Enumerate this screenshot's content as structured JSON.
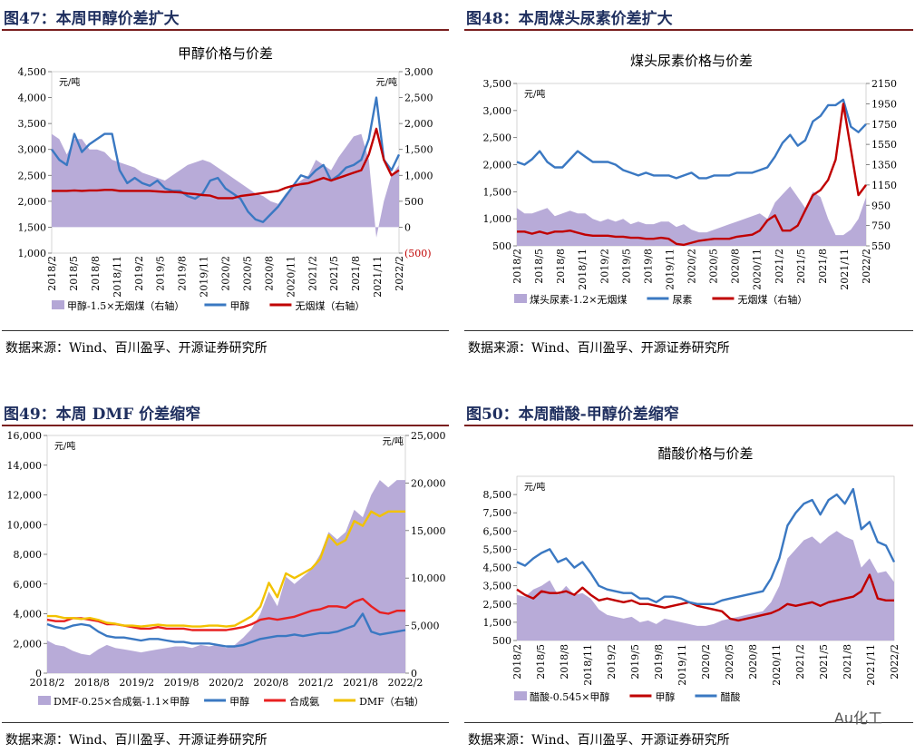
{
  "panels": [
    {
      "title": "图47：本周甲醇价差扩大",
      "source": "数据来源：Wind、百川盈孚、开源证券研究所"
    },
    {
      "title": "图48：本周煤头尿素价差扩大",
      "source": "数据来源：Wind、百川盈孚、开源证券研究所"
    },
    {
      "title": "图49：本周 DMF 价差缩窄",
      "source": "数据来源：Wind、百川盈孚、开源证券研究所"
    },
    {
      "title": "图50：本周醋酸-甲醇价差缩窄",
      "source": "数据来源：Wind、百川盈孚、开源证券研究所"
    }
  ],
  "watermark": "Au化工",
  "chart_data": [
    {
      "type": "line",
      "title": "甲醇价格与价差",
      "unit_left": "元/吨",
      "unit_right": "元/吨",
      "ylim_left": [
        1000,
        4500
      ],
      "yticks_left": [
        "1,000",
        "1,500",
        "2,000",
        "2,500",
        "3,000",
        "3,500",
        "4,000",
        "4,500"
      ],
      "ylim_right": [
        -500,
        3000
      ],
      "yticks_right": [
        "(500)",
        "0",
        "500",
        "1,000",
        "1,500",
        "2,000",
        "2,500",
        "3,000"
      ],
      "x_ticks": [
        "2018/2",
        "2018/5",
        "2018/8",
        "2018/11",
        "2019/2",
        "2019/5",
        "2019/8",
        "2019/11",
        "2020/2",
        "2020/5",
        "2020/8",
        "2020/11",
        "2021/2",
        "2021/5",
        "2021/8",
        "2021/11",
        "2022/2"
      ],
      "series": [
        {
          "name": "甲醇-1.5×无烟煤（右轴）",
          "style": "area",
          "axis": "right",
          "color": "#b4a7d6",
          "values": [
            1800,
            1700,
            1400,
            1700,
            1700,
            1500,
            1500,
            1450,
            1300,
            1250,
            1200,
            1150,
            1050,
            1000,
            950,
            900,
            1000,
            1100,
            1200,
            1250,
            1300,
            1250,
            1150,
            1050,
            950,
            850,
            750,
            650,
            600,
            500,
            450,
            650,
            800,
            900,
            1000,
            1300,
            1200,
            1100,
            1350,
            1550,
            1750,
            1800,
            1300,
            -200,
            500,
            1000,
            1200
          ]
        },
        {
          "name": "甲醇",
          "style": "line",
          "axis": "left",
          "color": "#3a78c2",
          "values": [
            3000,
            2800,
            2700,
            3300,
            2950,
            3100,
            3200,
            3300,
            3300,
            2600,
            2350,
            2450,
            2350,
            2300,
            2400,
            2250,
            2200,
            2200,
            2100,
            2050,
            2150,
            2400,
            2450,
            2250,
            2150,
            2050,
            1800,
            1650,
            1600,
            1750,
            1900,
            2100,
            2300,
            2500,
            2450,
            2600,
            2700,
            2400,
            2500,
            2650,
            2700,
            2800,
            3200,
            4000,
            2800,
            2600,
            2900
          ]
        },
        {
          "name": "无烟煤（右轴）",
          "style": "line",
          "axis": "right",
          "color": "#c00000",
          "values": [
            700,
            700,
            700,
            710,
            700,
            710,
            710,
            720,
            720,
            700,
            700,
            700,
            700,
            700,
            690,
            680,
            680,
            670,
            650,
            640,
            620,
            610,
            560,
            560,
            560,
            600,
            620,
            640,
            660,
            680,
            700,
            760,
            800,
            830,
            850,
            900,
            950,
            900,
            950,
            1000,
            1050,
            1100,
            1400,
            1900,
            1300,
            1000,
            1100
          ]
        }
      ]
    },
    {
      "type": "line",
      "title": "煤头尿素价格与价差",
      "unit_left": "元/吨",
      "ylim_left": [
        500,
        3500
      ],
      "yticks_left": [
        "500",
        "1,000",
        "1,500",
        "2,000",
        "2,500",
        "3,000",
        "3,500"
      ],
      "ylim_right": [
        550,
        2150
      ],
      "yticks_right": [
        "550",
        "750",
        "950",
        "1150",
        "1350",
        "1550",
        "1750",
        "1950",
        "2150"
      ],
      "x_ticks": [
        "2018/2",
        "2018/5",
        "2018/8",
        "2018/11",
        "2019/2",
        "2019/5",
        "2019/8",
        "2019/11",
        "2020/2",
        "2020/5",
        "2020/8",
        "2020/11",
        "2021/2",
        "2021/5",
        "2021/8",
        "2021/11",
        "2022/2"
      ],
      "series": [
        {
          "name": "煤头尿素-1.2×无烟煤",
          "style": "area",
          "axis": "left",
          "color": "#b4a7d6",
          "values": [
            1200,
            1100,
            1100,
            1150,
            1200,
            1050,
            1100,
            1150,
            1100,
            1100,
            1000,
            950,
            1000,
            950,
            1000,
            900,
            950,
            900,
            900,
            950,
            950,
            850,
            900,
            800,
            750,
            750,
            800,
            850,
            900,
            950,
            1000,
            1050,
            1100,
            1000,
            1300,
            1450,
            1600,
            1400,
            1200,
            1500,
            1400,
            1000,
            700,
            700,
            800,
            1000,
            1400
          ]
        },
        {
          "name": "尿素",
          "style": "line",
          "axis": "left",
          "color": "#3a78c2",
          "values": [
            2050,
            2000,
            2100,
            2250,
            2050,
            1950,
            1950,
            2100,
            2250,
            2150,
            2050,
            2050,
            2050,
            2000,
            1900,
            1850,
            1800,
            1850,
            1800,
            1800,
            1800,
            1750,
            1800,
            1850,
            1750,
            1750,
            1800,
            1800,
            1800,
            1850,
            1850,
            1850,
            1900,
            1950,
            2150,
            2400,
            2550,
            2350,
            2450,
            2800,
            2900,
            3100,
            3100,
            3200,
            2700,
            2600,
            2750
          ]
        },
        {
          "name": "无烟煤（右轴）",
          "style": "line",
          "axis": "right",
          "color": "#c00000",
          "values": [
            690,
            690,
            670,
            690,
            670,
            690,
            690,
            700,
            680,
            660,
            650,
            650,
            650,
            640,
            640,
            630,
            630,
            620,
            620,
            630,
            620,
            570,
            560,
            580,
            600,
            610,
            620,
            620,
            620,
            640,
            650,
            660,
            700,
            800,
            850,
            700,
            700,
            750,
            900,
            1050,
            1100,
            1200,
            1400,
            1950,
            1500,
            1050,
            1150
          ]
        }
      ]
    },
    {
      "type": "line",
      "title": "",
      "unit_left": "元/吨",
      "unit_right": "元/吨",
      "ylim_left": [
        0,
        16000
      ],
      "yticks_left": [
        "0",
        "2,000",
        "4,000",
        "6,000",
        "8,000",
        "10,000",
        "12,000",
        "14,000",
        "16,000"
      ],
      "ylim_right": [
        0,
        25000
      ],
      "yticks_right": [
        "0",
        "5,000",
        "10,000",
        "15,000",
        "20,000",
        "25,000"
      ],
      "x_ticks": [
        "2018/2",
        "2018/8",
        "2019/2",
        "2019/8",
        "2020/2",
        "2020/8",
        "2021/2",
        "2021/8",
        "2022/2"
      ],
      "series": [
        {
          "name": "DMF-0.25×合成氨-1.1×甲醇",
          "style": "area",
          "axis": "left",
          "color": "#b4a7d6",
          "values": [
            2200,
            1900,
            1800,
            1500,
            1300,
            1200,
            1600,
            1900,
            1700,
            1600,
            1500,
            1400,
            1500,
            1600,
            1700,
            1800,
            1800,
            1700,
            1900,
            1800,
            1900,
            1700,
            1900,
            2400,
            3000,
            4000,
            5500,
            4500,
            6500,
            6000,
            6500,
            7000,
            8000,
            9500,
            9000,
            9500,
            11000,
            10500,
            12000,
            13000,
            12500,
            13000,
            13000
          ]
        },
        {
          "name": "甲醇",
          "style": "line",
          "axis": "left",
          "color": "#3a78c2",
          "values": [
            3300,
            3100,
            3000,
            3200,
            3300,
            3200,
            2800,
            2500,
            2400,
            2400,
            2300,
            2200,
            2300,
            2300,
            2200,
            2100,
            2100,
            2000,
            2000,
            2000,
            1900,
            1800,
            1800,
            1900,
            2100,
            2300,
            2400,
            2500,
            2500,
            2600,
            2500,
            2600,
            2700,
            2700,
            2800,
            3000,
            3200,
            4000,
            2800,
            2600,
            2700,
            2800,
            2900
          ]
        },
        {
          "name": "合成氨",
          "style": "line",
          "axis": "left",
          "color": "#e82020",
          "values": [
            3600,
            3500,
            3500,
            3700,
            3700,
            3600,
            3500,
            3300,
            3300,
            3200,
            3100,
            3000,
            3000,
            3100,
            3000,
            3000,
            3000,
            2900,
            2900,
            2900,
            2900,
            2900,
            3000,
            3100,
            3300,
            3600,
            3700,
            3600,
            3700,
            3800,
            4000,
            4200,
            4300,
            4500,
            4500,
            4400,
            4800,
            5000,
            4500,
            4100,
            4000,
            4200,
            4200
          ]
        },
        {
          "name": "DMF（右轴）",
          "style": "line",
          "axis": "right",
          "color": "#f2c200",
          "values": [
            6000,
            6000,
            5800,
            5800,
            5700,
            5800,
            5600,
            5300,
            5200,
            5000,
            5000,
            4900,
            5000,
            5100,
            5000,
            5000,
            5000,
            4900,
            4900,
            5000,
            5000,
            4900,
            5000,
            5500,
            6000,
            7000,
            9500,
            8000,
            10500,
            10000,
            10500,
            11000,
            12000,
            14500,
            13500,
            14000,
            16000,
            15500,
            17000,
            16500,
            17000,
            17000,
            17000
          ]
        }
      ]
    },
    {
      "type": "line",
      "title": "醋酸价格与价差",
      "unit_left": "元/吨",
      "ylim_left": [
        500,
        9500
      ],
      "yticks_left": [
        "500",
        "1,500",
        "2,500",
        "3,500",
        "4,500",
        "5,500",
        "6,500",
        "7,500",
        "8,500"
      ],
      "x_ticks": [
        "2018/2",
        "2018/5",
        "2018/8",
        "2018/11",
        "2019/2",
        "2019/5",
        "2019/8",
        "2019/11",
        "2020/2",
        "2020/5",
        "2020/8",
        "2020/11",
        "2021/2",
        "2021/5",
        "2021/8",
        "2021/11",
        "2022/2"
      ],
      "series": [
        {
          "name": "醋酸-0.545×甲醇",
          "style": "area",
          "axis": "left",
          "color": "#b4a7d6",
          "values": [
            3000,
            2900,
            3300,
            3500,
            3800,
            3000,
            3500,
            3000,
            3100,
            2800,
            2200,
            1900,
            1800,
            1700,
            1800,
            1500,
            1600,
            1400,
            1700,
            1600,
            1500,
            1400,
            1300,
            1300,
            1400,
            1600,
            1700,
            1800,
            1900,
            2000,
            2100,
            2600,
            3500,
            5000,
            5500,
            6000,
            6200,
            5800,
            6200,
            6500,
            6200,
            6000,
            4500,
            5000,
            4200,
            4300,
            3700
          ]
        },
        {
          "name": "甲醇",
          "style": "line",
          "axis": "left",
          "color": "#c00000",
          "values": [
            3300,
            3000,
            2800,
            3200,
            3100,
            3100,
            3200,
            3000,
            3400,
            3000,
            2700,
            2800,
            2700,
            2600,
            2700,
            2500,
            2500,
            2400,
            2300,
            2400,
            2500,
            2600,
            2400,
            2300,
            2200,
            2100,
            1700,
            1600,
            1700,
            1800,
            1900,
            2000,
            2200,
            2500,
            2400,
            2500,
            2600,
            2400,
            2600,
            2700,
            2800,
            2900,
            3200,
            4100,
            2800,
            2700,
            2700
          ]
        },
        {
          "name": "醋酸",
          "style": "line",
          "axis": "left",
          "color": "#3a78c2",
          "values": [
            4800,
            4600,
            5000,
            5300,
            5500,
            4800,
            5000,
            4500,
            4800,
            4200,
            3500,
            3300,
            3200,
            3100,
            3100,
            2800,
            2800,
            2600,
            2900,
            2900,
            2800,
            2600,
            2500,
            2500,
            2500,
            2700,
            2800,
            2900,
            3000,
            3100,
            3200,
            3900,
            5000,
            6800,
            7500,
            8000,
            8200,
            7400,
            8200,
            8500,
            8000,
            8800,
            6600,
            7000,
            5900,
            5700,
            4800
          ]
        }
      ]
    }
  ]
}
